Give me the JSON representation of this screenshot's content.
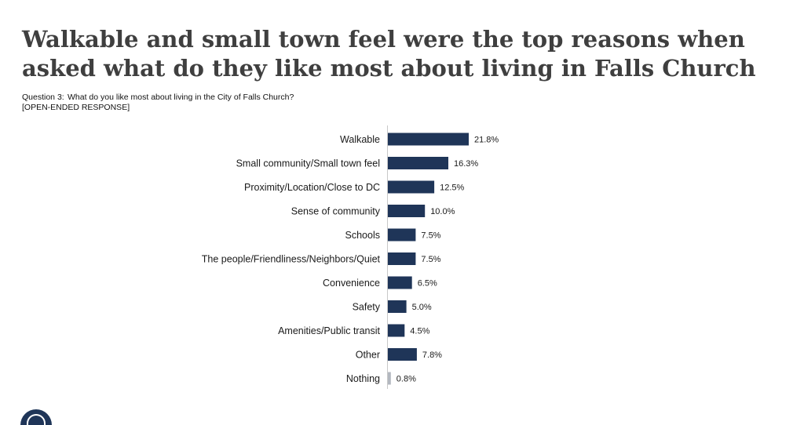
{
  "header": {
    "title_line1": "Walkable and small town feel were the top reasons when",
    "title_line2": "asked what do they like most about living in Falls Church",
    "question_number": "Question 3:",
    "question_text": "What do you like most about living in the City of Falls Church?",
    "response_type": "[OPEN-ENDED RESPONSE]"
  },
  "colors": {
    "bar": "#1f3558",
    "bar_minor": "#b3b8c0"
  },
  "chart_data": {
    "type": "bar",
    "orientation": "horizontal",
    "categories": [
      "Walkable",
      "Small community/Small town feel",
      "Proximity/Location/Close to DC",
      "Sense of community",
      "Schools",
      "The people/Friendliness/Neighbors/Quiet",
      "Convenience",
      "Safety",
      "Amenities/Public transit",
      "Other",
      "Nothing"
    ],
    "values": [
      21.8,
      16.3,
      12.5,
      10.0,
      7.5,
      7.5,
      6.5,
      5.0,
      4.5,
      7.8,
      0.8
    ],
    "value_labels": [
      "21.8%",
      "16.3%",
      "12.5%",
      "10.0%",
      "7.5%",
      "7.5%",
      "6.5%",
      "5.0%",
      "4.5%",
      "7.8%",
      "0.8%"
    ],
    "bar_colors": [
      "#1f3558",
      "#1f3558",
      "#1f3558",
      "#1f3558",
      "#1f3558",
      "#1f3558",
      "#1f3558",
      "#1f3558",
      "#1f3558",
      "#1f3558",
      "#b3b8c0"
    ],
    "title": "",
    "xlabel": "",
    "ylabel": "",
    "grid": false,
    "legend": "none"
  }
}
